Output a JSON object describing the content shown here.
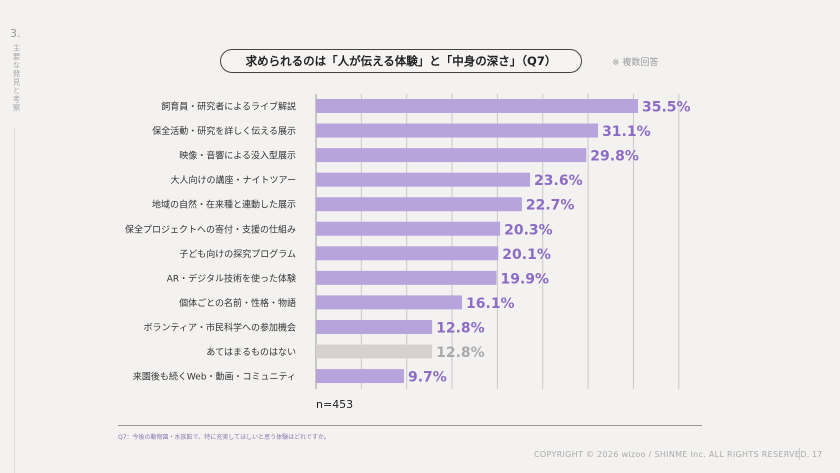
{
  "section": {
    "number": "3.",
    "title": "主要な発見と考察"
  },
  "title": "求められるのは「人が伝える体験」と「中身の深さ」（Q7）",
  "note": "※ 複数回答",
  "sample": "n=453",
  "footnote": "Q7：今後の動物園・水族館で、特に充実してほしいと思う体験はどれですか。",
  "copyright": "COPYRIGHT © 2026 wizoo / SHINME Inc. ALL RIGHTS RESERVED.",
  "page_number": "17",
  "colors": {
    "bar": "#b8a4dc",
    "bar_neutral": "#d6d0d0",
    "label": "#8c6cc4",
    "label_neutral": "#aaaaaa"
  },
  "chart_data": {
    "type": "bar",
    "orientation": "horizontal",
    "categories": [
      "飼育員・研究者によるライブ解説",
      "保全活動・研究を詳しく伝える展示",
      "映像・音響による没入型展示",
      "大人向けの講座・ナイトツアー",
      "地域の自然・在来種と連動した展示",
      "保全プロジェクトへの寄付・支援の仕組み",
      "子ども向けの探究プログラム",
      "AR・デジタル技術を使った体験",
      "個体ごとの名前・性格・物語",
      "ボランティア・市民科学への参加機会",
      "あてはまるものはない",
      "来園後も続くWeb・動画・コミュニティ"
    ],
    "values": [
      35.5,
      31.1,
      29.8,
      23.6,
      22.7,
      20.3,
      20.1,
      19.9,
      16.1,
      12.8,
      12.8,
      9.7
    ],
    "value_labels": [
      "35.5%",
      "31.1%",
      "29.8%",
      "23.6%",
      "22.7%",
      "20.3%",
      "20.1%",
      "19.9%",
      "16.1%",
      "12.8%",
      "12.8%",
      "9.7%"
    ],
    "highlight": [
      true,
      true,
      true,
      true,
      true,
      true,
      true,
      true,
      true,
      true,
      false,
      true
    ],
    "xlim": [
      0,
      40
    ],
    "grid": true
  }
}
